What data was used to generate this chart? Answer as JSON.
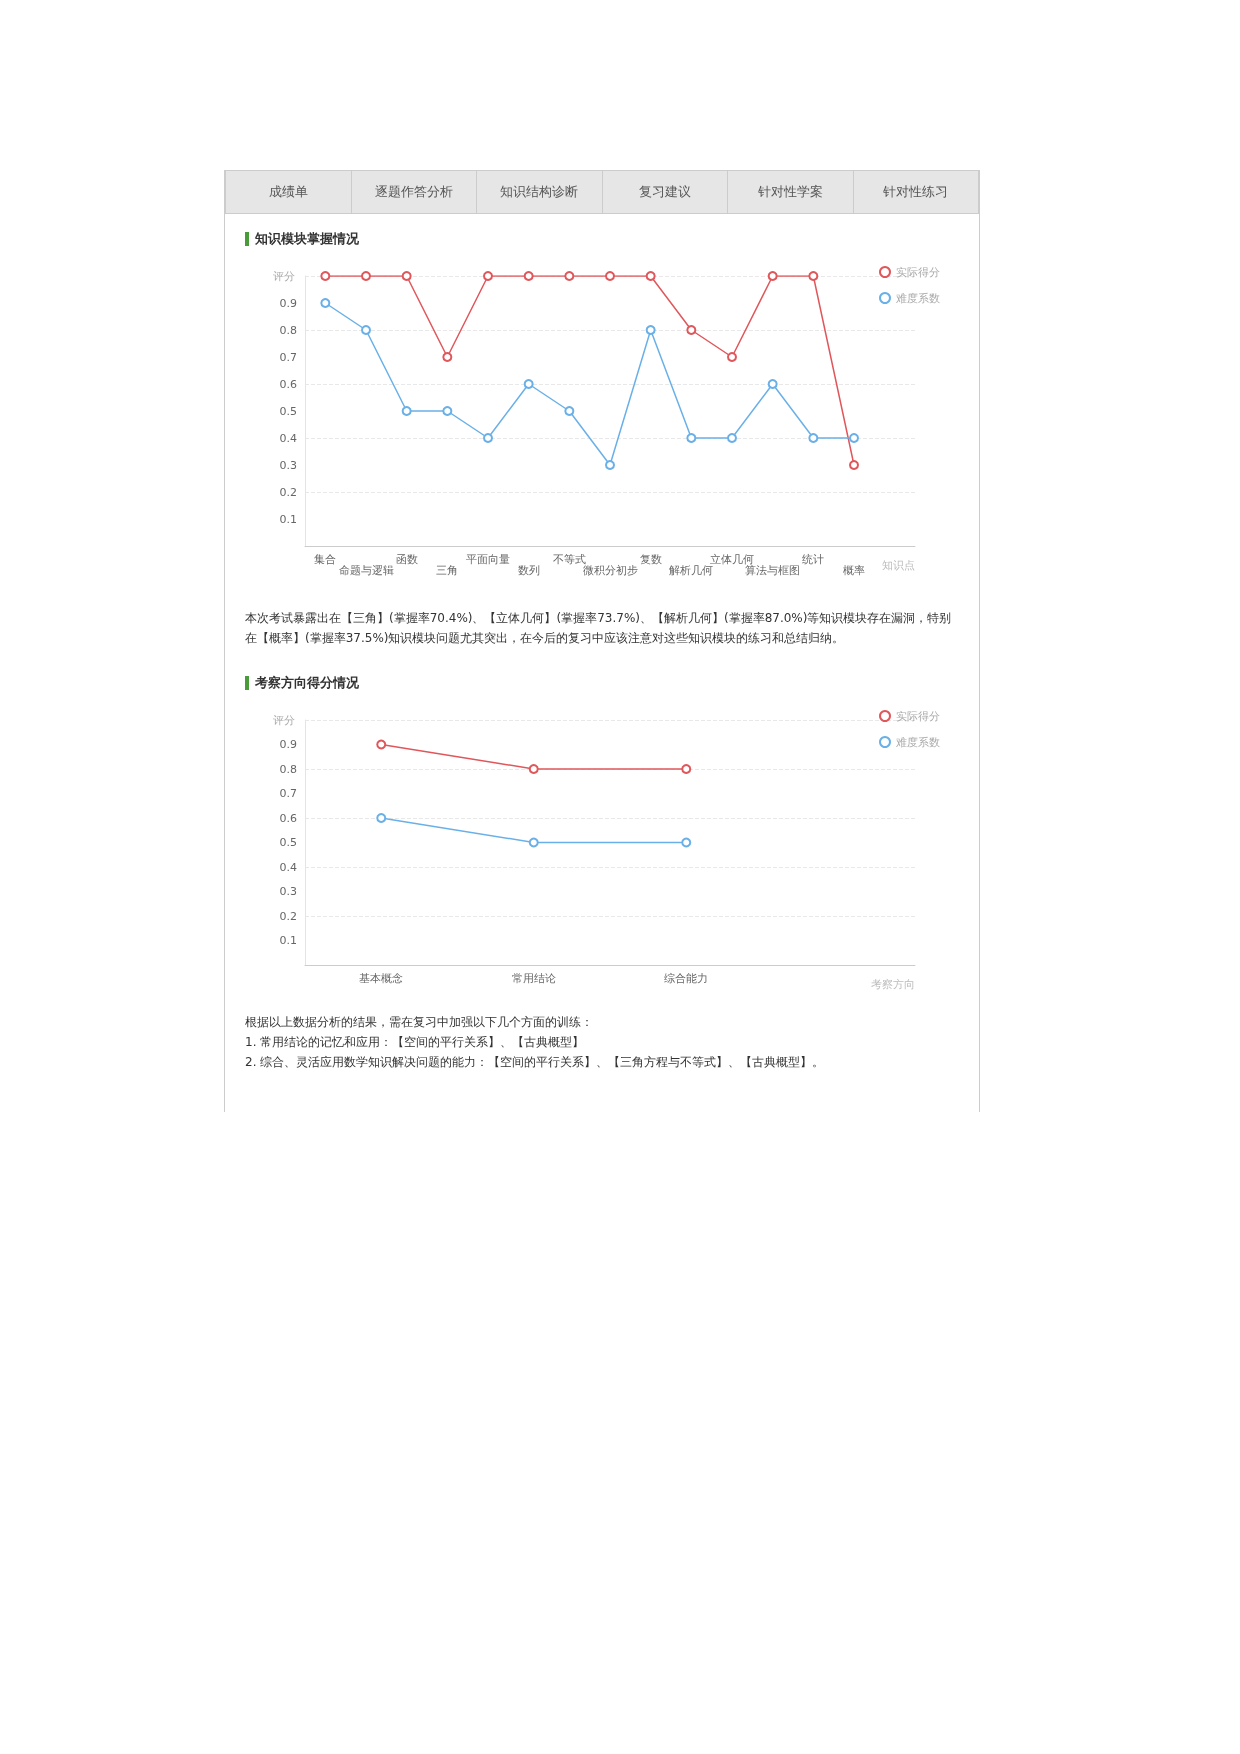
{
  "chart_data": [
    {
      "type": "other",
      "annotations": [
        "成绩单",
        "逐题作答分析",
        "知识结构诊断",
        "复习建议",
        "针对性学案",
        "针对性练习"
      ]
    },
    {
      "type": "line",
      "title": "知识模块掌握情况",
      "ylabel": "评分",
      "xlabel": "知识点",
      "categories": [
        "集合",
        "命题与逻辑",
        "函数",
        "三角",
        "平面向量",
        "数列",
        "不等式",
        "微积分初步",
        "复数",
        "解析几何",
        "立体几何",
        "算法与框图",
        "统计",
        "概率",
        null
      ],
      "series": [
        {
          "name": "实际得分",
          "color": "#e0575b",
          "values": [
            1,
            1,
            1,
            0.7,
            1,
            1,
            1,
            1,
            1,
            0.8,
            0.7,
            1,
            1,
            0.3,
            null
          ]
        },
        {
          "name": "难度系数",
          "color": "#6ab0e8",
          "values": [
            0.9,
            0.8,
            0.5,
            0.5,
            0.4,
            0.6,
            0.5,
            0.3,
            0.8,
            0.4,
            0.4,
            0.6,
            0.4,
            0.4,
            null
          ]
        }
      ],
      "ylim": [
        0,
        1
      ],
      "yticks": [
        0.1,
        0.2,
        0.3,
        0.4,
        0.5,
        0.6,
        0.7,
        0.8,
        0.9
      ],
      "grid": "y",
      "legend": "top right",
      "marker": "circle",
      "line_style": "solid",
      "annotations": [
        "本次考试暴露出在【三角】(掌握率70.4%)、【立体几何】(掌握率73.7%)、【解析几何】(掌握率87.0%)等知识模块存在漏洞，特别在【概率】(掌握率37.5%)知识模块问题尤其突出，在今后的复习中应该注意对这些知识模块的练习和总结归纳。"
      ]
    },
    {
      "type": "line",
      "title": "考察方向得分情况",
      "ylabel": "评分",
      "xlabel": "考察方向",
      "categories": [
        "基本概念",
        "常用结论",
        "综合能力",
        null
      ],
      "series": [
        {
          "name": "实际得分",
          "color": "#e0575b",
          "values": [
            0.9,
            0.8,
            0.8,
            null
          ]
        },
        {
          "name": "难度系数",
          "color": "#6ab0e8",
          "values": [
            0.6,
            0.5,
            0.5,
            null
          ]
        }
      ],
      "ylim": [
        0,
        1
      ],
      "yticks": [
        0.1,
        0.2,
        0.3,
        0.4,
        0.5,
        0.6,
        0.7,
        0.8,
        0.9
      ],
      "grid": "y",
      "legend": "top right",
      "marker": "circle",
      "line_style": "solid",
      "annotations": [
        "根据以上数据分析的结果，需在复习中加强以下几个方面的训练：",
        "1. 常用结论的记忆和应用：【空间的平行关系】、【古典概型】",
        "2. 综合、灵活应用数学知识解决问题的能力：【空间的平行关系】、【三角方程与不等式】、【古典概型】。"
      ]
    }
  ]
}
